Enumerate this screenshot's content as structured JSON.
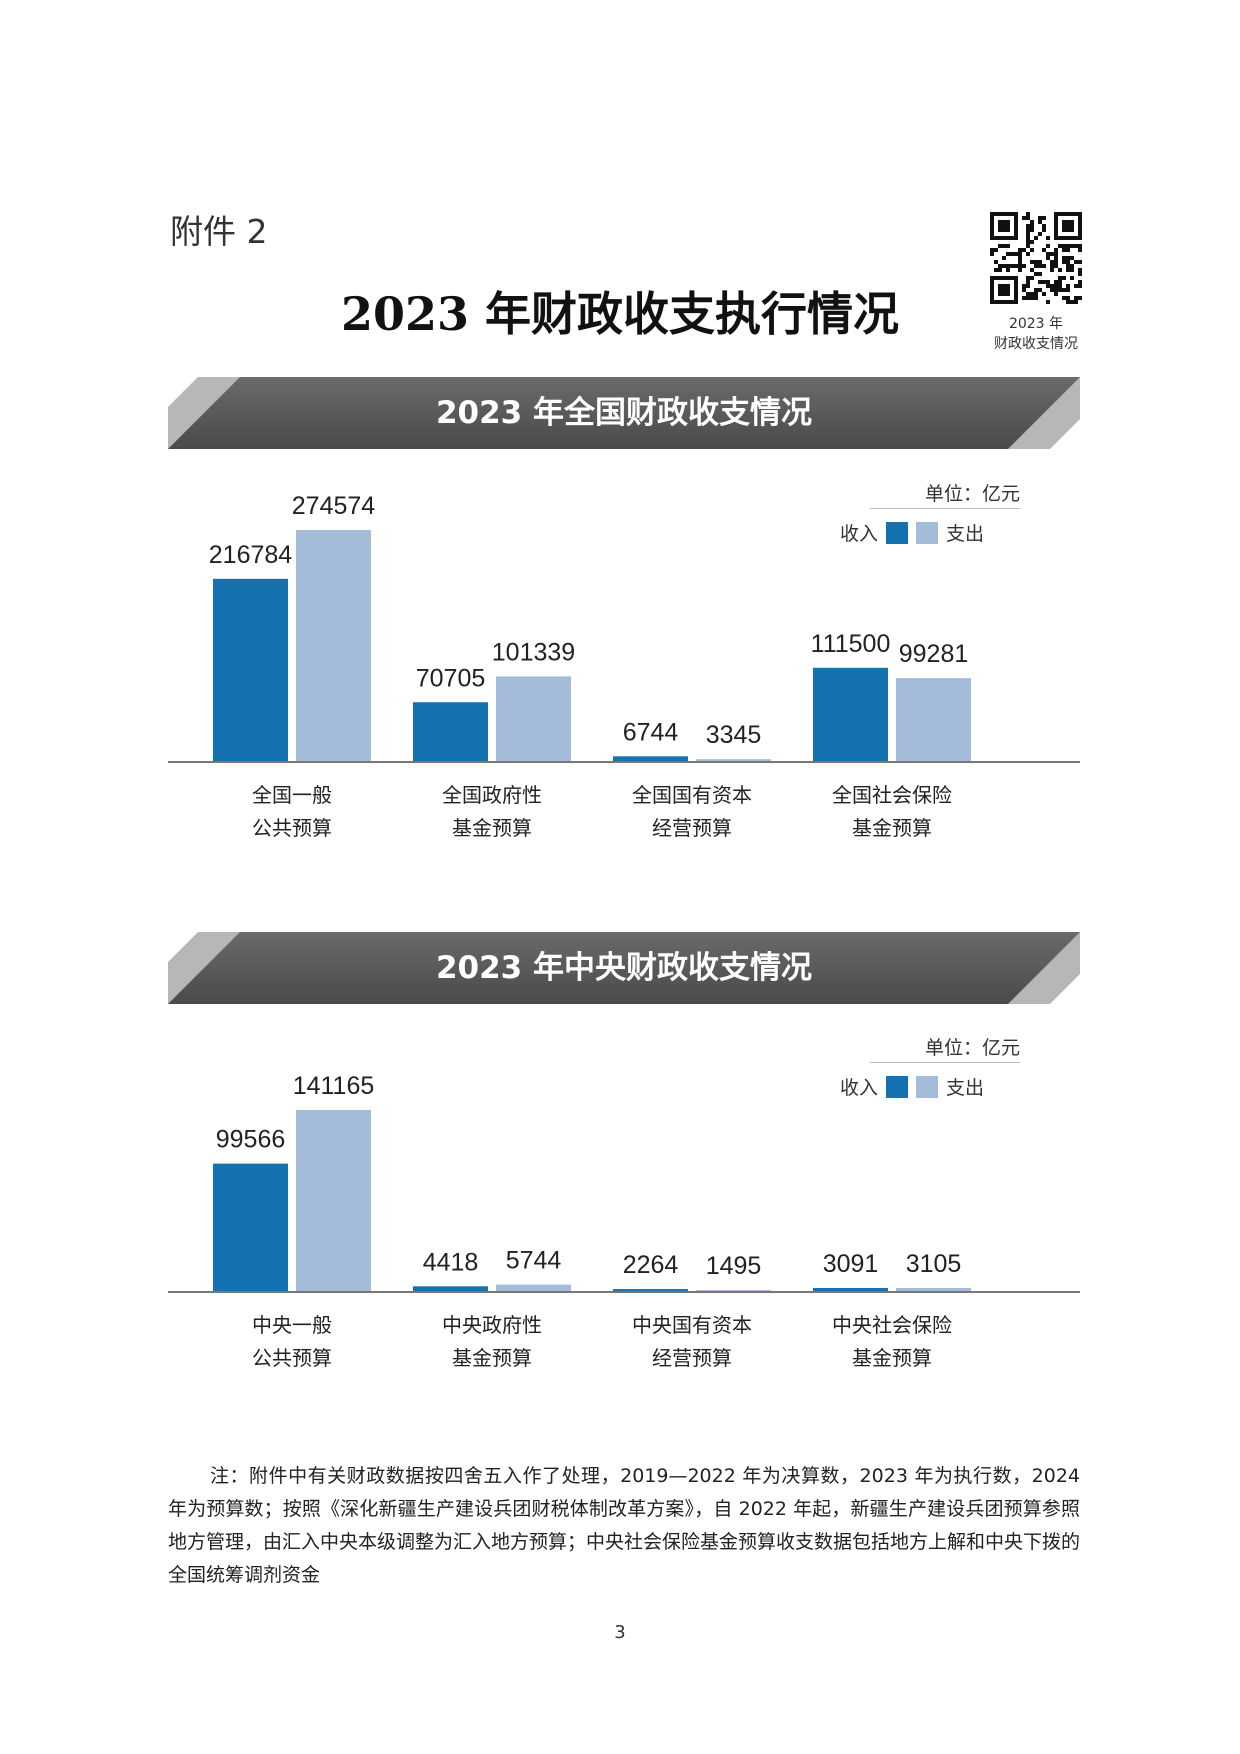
{
  "header": {
    "attachment_label": "附件 2",
    "title": "2023 年财政收支执行情况",
    "qr_caption_line1": "2023 年",
    "qr_caption_line2": "财政收支情况"
  },
  "colors": {
    "income": "#1572b0",
    "expenditure": "#a4bcda",
    "banner_dark": "#5a5a5a",
    "banner_light": "#9a9a9a"
  },
  "sections": [
    {
      "banner_title": "2023 年全国财政收支情况",
      "unit": "单位：亿元",
      "legend_income": "收入",
      "legend_expenditure": "支出"
    },
    {
      "banner_title": "2023 年中央财政收支情况",
      "unit": "单位：亿元",
      "legend_income": "收入",
      "legend_expenditure": "支出"
    }
  ],
  "chart_data": [
    {
      "type": "bar",
      "title": "2023 年全国财政收支情况",
      "categories": [
        [
          "全国一般",
          "公共预算"
        ],
        [
          "全国政府性",
          "基金预算"
        ],
        [
          "全国国有资本",
          "经营预算"
        ],
        [
          "全国社会保险",
          "基金预算"
        ]
      ],
      "series": [
        {
          "name": "收入",
          "values": [
            216784,
            70705,
            6744,
            111500
          ]
        },
        {
          "name": "支出",
          "values": [
            274574,
            101339,
            3345,
            99281
          ]
        }
      ],
      "unit": "单位：亿元",
      "legend": "top-right"
    },
    {
      "type": "bar",
      "title": "2023 年中央财政收支情况",
      "categories": [
        [
          "中央一般",
          "公共预算"
        ],
        [
          "中央政府性",
          "基金预算"
        ],
        [
          "中央国有资本",
          "经营预算"
        ],
        [
          "中央社会保险",
          "基金预算"
        ]
      ],
      "series": [
        {
          "name": "收入",
          "values": [
            99566,
            4418,
            2264,
            3091
          ]
        },
        {
          "name": "支出",
          "values": [
            141165,
            5744,
            1495,
            3105
          ]
        }
      ],
      "unit": "单位：亿元",
      "legend": "top-right"
    }
  ],
  "note": "注：附件中有关财政数据按四舍五入作了处理，2019—2022 年为决算数，2023 年为执行数，2024 年为预算数；按照《深化新疆生产建设兵团财税体制改革方案》，自 2022 年起，新疆生产建设兵团预算参照地方管理，由汇入中央本级调整为汇入地方预算；中央社会保险基金预算收支数据包括地方上解和中央下拨的全国统筹调剂资金",
  "page_number": "3"
}
